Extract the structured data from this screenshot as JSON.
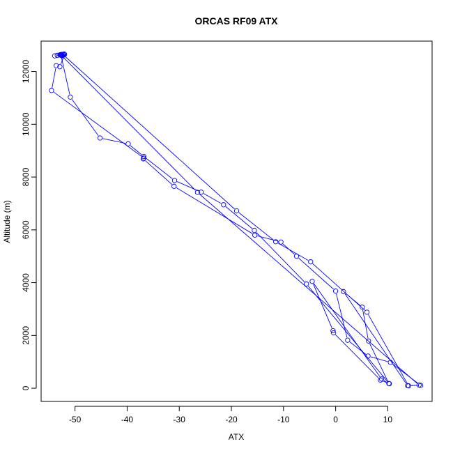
{
  "chart_data": {
    "type": "line",
    "title": "ORCAS RF09 ATX",
    "xlabel": "ATX",
    "ylabel": "Altitude (m)",
    "xlim": [
      -56.5,
      18.5
    ],
    "ylim": [
      -500,
      13150
    ],
    "xticks": [
      -50,
      -40,
      -30,
      -20,
      -10,
      0,
      10
    ],
    "yticks": [
      0,
      2000,
      4000,
      6000,
      8000,
      10000,
      12000
    ],
    "grid": false,
    "legend": "none",
    "series": [
      {
        "color": "#0000ff",
        "marker": "open-circle",
        "points": [
          [
            -52.6,
            12640
          ],
          [
            -52.8,
            12620
          ],
          [
            -52.3,
            12650
          ],
          [
            -52.9,
            12630
          ],
          [
            -53.4,
            12610
          ],
          [
            -52.4,
            12600
          ],
          [
            -52.1,
            12660
          ],
          [
            -52.7,
            12640
          ],
          [
            -53.9,
            12590
          ],
          [
            -52.5,
            12600
          ],
          [
            -52.2,
            12620
          ],
          [
            -52.0,
            12650
          ],
          [
            -52.9,
            12180
          ],
          [
            -53.6,
            12220
          ],
          [
            -54.5,
            11280
          ],
          [
            -36.8,
            8720
          ],
          [
            -36.9,
            8690
          ],
          [
            -31.0,
            7650
          ],
          [
            -15.5,
            5800
          ],
          [
            -10.5,
            5540
          ],
          [
            -7.5,
            5000
          ],
          [
            0.0,
            3680
          ],
          [
            2.3,
            1820
          ],
          [
            6.2,
            1220
          ],
          [
            10.5,
            980
          ],
          [
            16.3,
            110
          ],
          [
            13.8,
            100
          ],
          [
            1.5,
            3660
          ],
          [
            5.1,
            3070
          ],
          [
            6.3,
            1790
          ],
          [
            10.2,
            180
          ],
          [
            8.8,
            350
          ],
          [
            -4.5,
            4050
          ],
          [
            -0.5,
            2180
          ],
          [
            -0.4,
            2100
          ],
          [
            8.6,
            310
          ],
          [
            10.3,
            170
          ],
          [
            -5.6,
            3950
          ],
          [
            -15.6,
            5980
          ],
          [
            -21.5,
            6950
          ],
          [
            -25.8,
            7430
          ],
          [
            -30.9,
            7870
          ],
          [
            -36.8,
            8780
          ],
          [
            -39.8,
            9260
          ],
          [
            -45.2,
            9480
          ],
          [
            -50.9,
            11030
          ],
          [
            -52.7,
            12620
          ],
          [
            -52.3,
            12640
          ],
          [
            -19.0,
            6720
          ],
          [
            -11.5,
            5550
          ],
          [
            -4.8,
            4790
          ],
          [
            6.0,
            2880
          ],
          [
            14.0,
            90
          ],
          [
            16.0,
            120
          ],
          [
            -26.5,
            7420
          ],
          [
            -52.6,
            12610
          ]
        ]
      }
    ]
  }
}
